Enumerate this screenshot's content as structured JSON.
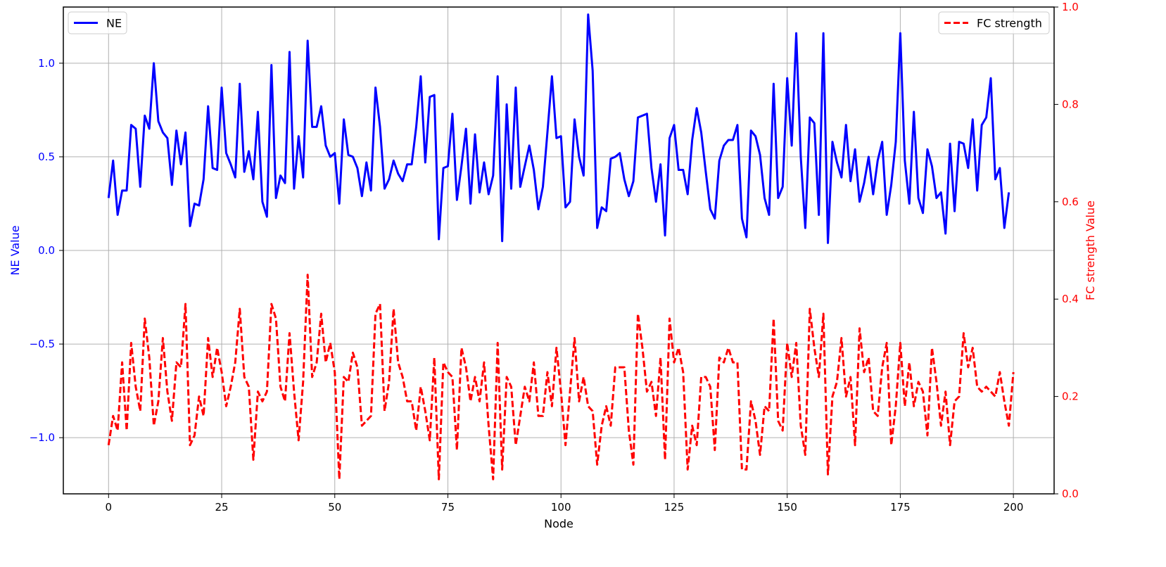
{
  "chart_data": {
    "type": "line",
    "xlabel": "Node",
    "ylabel_left": "NE Value",
    "ylabel_right": "FC strength Value",
    "xlim": [
      -10,
      209
    ],
    "ylim_left": [
      -1.3,
      1.3
    ],
    "ylim_right": [
      0,
      1
    ],
    "xticks": [
      0,
      25,
      50,
      75,
      100,
      125,
      150,
      175,
      200
    ],
    "xtick_labels": [
      "0",
      "25",
      "50",
      "75",
      "100",
      "125",
      "150",
      "175",
      "200"
    ],
    "yticks_left": [
      -1.0,
      -0.5,
      0.0,
      0.5,
      1.0
    ],
    "ytick_labels_left": [
      "−1.0",
      "−0.5",
      "0.0",
      "0.5",
      "1.0"
    ],
    "yticks_right": [
      0.0,
      0.2,
      0.4,
      0.6,
      0.8,
      1.0
    ],
    "ytick_labels_right": [
      "0.0",
      "0.2",
      "0.4",
      "0.6",
      "0.8",
      "1.0"
    ],
    "grid": true,
    "legend_left": {
      "label": "NE",
      "placement": "top-left"
    },
    "legend_right": {
      "label": "FC strength",
      "placement": "top-right"
    },
    "series": [
      {
        "name": "NE",
        "axis": "left",
        "color": "#0000ff",
        "style": "solid",
        "x_start": 0,
        "values": [
          0.28,
          0.48,
          0.19,
          0.32,
          0.32,
          0.67,
          0.65,
          0.34,
          0.72,
          0.65,
          1.0,
          0.69,
          0.63,
          0.6,
          0.35,
          0.64,
          0.46,
          0.63,
          0.13,
          0.25,
          0.24,
          0.38,
          0.77,
          0.44,
          0.43,
          0.87,
          0.52,
          0.46,
          0.39,
          0.89,
          0.42,
          0.53,
          0.38,
          0.74,
          0.26,
          0.18,
          0.99,
          0.28,
          0.4,
          0.36,
          1.06,
          0.33,
          0.61,
          0.39,
          1.12,
          0.66,
          0.66,
          0.77,
          0.56,
          0.5,
          0.52,
          0.25,
          0.7,
          0.51,
          0.5,
          0.44,
          0.29,
          0.47,
          0.32,
          0.87,
          0.66,
          0.33,
          0.38,
          0.48,
          0.41,
          0.37,
          0.46,
          0.46,
          0.66,
          0.93,
          0.47,
          0.82,
          0.83,
          0.06,
          0.44,
          0.45,
          0.73,
          0.27,
          0.45,
          0.65,
          0.25,
          0.62,
          0.31,
          0.47,
          0.3,
          0.4,
          0.93,
          0.05,
          0.78,
          0.33,
          0.87,
          0.34,
          0.45,
          0.56,
          0.43,
          0.22,
          0.34,
          0.63,
          0.93,
          0.6,
          0.61,
          0.23,
          0.26,
          0.7,
          0.5,
          0.4,
          1.26,
          0.96,
          0.12,
          0.23,
          0.21,
          0.49,
          0.5,
          0.52,
          0.38,
          0.29,
          0.37,
          0.71,
          0.72,
          0.73,
          0.44,
          0.26,
          0.46,
          0.08,
          0.6,
          0.67,
          0.43,
          0.43,
          0.3,
          0.59,
          0.76,
          0.63,
          0.42,
          0.22,
          0.17,
          0.48,
          0.56,
          0.59,
          0.59,
          0.67,
          0.17,
          0.07,
          0.64,
          0.61,
          0.51,
          0.28,
          0.19,
          0.89,
          0.28,
          0.34,
          0.92,
          0.56,
          1.16,
          0.5,
          0.12,
          0.71,
          0.68,
          0.19,
          1.16,
          0.04,
          0.58,
          0.47,
          0.39,
          0.67,
          0.37,
          0.54,
          0.26,
          0.36,
          0.5,
          0.3,
          0.48,
          0.58,
          0.19,
          0.35,
          0.58,
          1.16,
          0.48,
          0.25,
          0.74,
          0.28,
          0.2,
          0.54,
          0.45,
          0.28,
          0.31,
          0.09,
          0.57,
          0.21,
          0.58,
          0.57,
          0.44,
          0.7,
          0.32,
          0.67,
          0.71,
          0.92,
          0.38,
          0.44,
          0.12,
          0.31
        ]
      },
      {
        "name": "FC strength",
        "axis": "right",
        "color": "#ff0000",
        "style": "dashed",
        "x_start": 0,
        "values": [
          0.1,
          0.16,
          0.13,
          0.27,
          0.13,
          0.31,
          0.22,
          0.17,
          0.36,
          0.28,
          0.14,
          0.19,
          0.32,
          0.21,
          0.15,
          0.27,
          0.26,
          0.39,
          0.1,
          0.12,
          0.2,
          0.16,
          0.32,
          0.24,
          0.3,
          0.25,
          0.18,
          0.22,
          0.27,
          0.38,
          0.24,
          0.22,
          0.07,
          0.21,
          0.19,
          0.21,
          0.39,
          0.36,
          0.22,
          0.19,
          0.33,
          0.21,
          0.11,
          0.23,
          0.45,
          0.24,
          0.27,
          0.37,
          0.27,
          0.31,
          0.25,
          0.03,
          0.24,
          0.23,
          0.29,
          0.26,
          0.14,
          0.15,
          0.16,
          0.37,
          0.39,
          0.17,
          0.23,
          0.38,
          0.27,
          0.24,
          0.19,
          0.19,
          0.13,
          0.22,
          0.17,
          0.11,
          0.28,
          0.03,
          0.27,
          0.25,
          0.24,
          0.09,
          0.3,
          0.26,
          0.19,
          0.24,
          0.19,
          0.27,
          0.14,
          0.03,
          0.31,
          0.05,
          0.24,
          0.22,
          0.1,
          0.16,
          0.22,
          0.19,
          0.27,
          0.16,
          0.16,
          0.25,
          0.18,
          0.3,
          0.21,
          0.1,
          0.21,
          0.32,
          0.19,
          0.24,
          0.18,
          0.17,
          0.06,
          0.14,
          0.18,
          0.14,
          0.26,
          0.26,
          0.26,
          0.13,
          0.06,
          0.37,
          0.3,
          0.21,
          0.23,
          0.16,
          0.28,
          0.07,
          0.36,
          0.27,
          0.3,
          0.25,
          0.05,
          0.14,
          0.1,
          0.24,
          0.24,
          0.22,
          0.09,
          0.28,
          0.27,
          0.3,
          0.27,
          0.27,
          0.05,
          0.05,
          0.19,
          0.15,
          0.08,
          0.18,
          0.17,
          0.36,
          0.15,
          0.13,
          0.31,
          0.24,
          0.31,
          0.14,
          0.08,
          0.38,
          0.3,
          0.24,
          0.37,
          0.04,
          0.2,
          0.23,
          0.32,
          0.2,
          0.24,
          0.1,
          0.34,
          0.25,
          0.28,
          0.17,
          0.16,
          0.26,
          0.31,
          0.1,
          0.18,
          0.31,
          0.18,
          0.27,
          0.18,
          0.23,
          0.21,
          0.12,
          0.3,
          0.23,
          0.14,
          0.21,
          0.1,
          0.19,
          0.2,
          0.33,
          0.26,
          0.3,
          0.22,
          0.21,
          0.22,
          0.21,
          0.2,
          0.25,
          0.19,
          0.14,
          0.25
        ]
      }
    ]
  }
}
